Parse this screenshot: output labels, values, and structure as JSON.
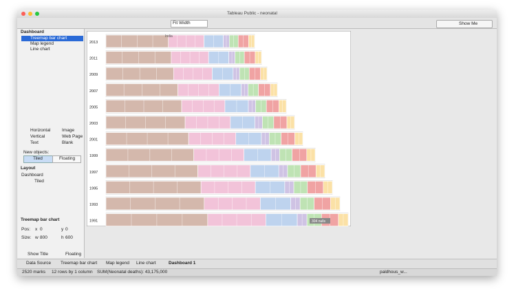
{
  "window": {
    "title": "Tableau Public - neonatal"
  },
  "toolbar": {
    "fit": "Fit Width",
    "show_me": "Show Me"
  },
  "sidebar": {
    "dashboard_header": "Dashboard",
    "sheets": [
      "Treemap bar chart",
      "Map legend",
      "Line chart"
    ],
    "objects": [
      "Horizontal",
      "Image",
      "Vertical",
      "Web Page",
      "Text",
      "Blank"
    ],
    "new_objects_label": "New objects:",
    "tiled": "Tiled",
    "floating": "Floating",
    "layout_header": "Layout",
    "layout_root": "Dashboard",
    "layout_child": "Tiled",
    "selected_header": "Treemap bar chart",
    "pos_label": "Pos:",
    "x_label": "x",
    "x_value": "0",
    "y_label": "y",
    "y_value": "0",
    "size_label": "Size:",
    "w_label": "w",
    "w_value": "800",
    "h_label": "h",
    "h_value": "600",
    "show_title": "Show Title",
    "floating_check": "Floating"
  },
  "chart": {
    "years": [
      "2013",
      "2011",
      "2009",
      "2007",
      "2005",
      "2003",
      "2001",
      "1999",
      "1997",
      "1995",
      "1993",
      "1991"
    ],
    "annotation": "India",
    "nulls": "304 nulls"
  },
  "tabs": [
    "Data Source",
    "Treemap bar chart",
    "Map legend",
    "Line chart",
    "Dashboard 1"
  ],
  "status": {
    "marks": "2520 marks",
    "dims": "12 rows by 1 column",
    "sum": "SUM(Neonatal deaths): 43,175,000",
    "user": "paldhous_w..."
  }
}
